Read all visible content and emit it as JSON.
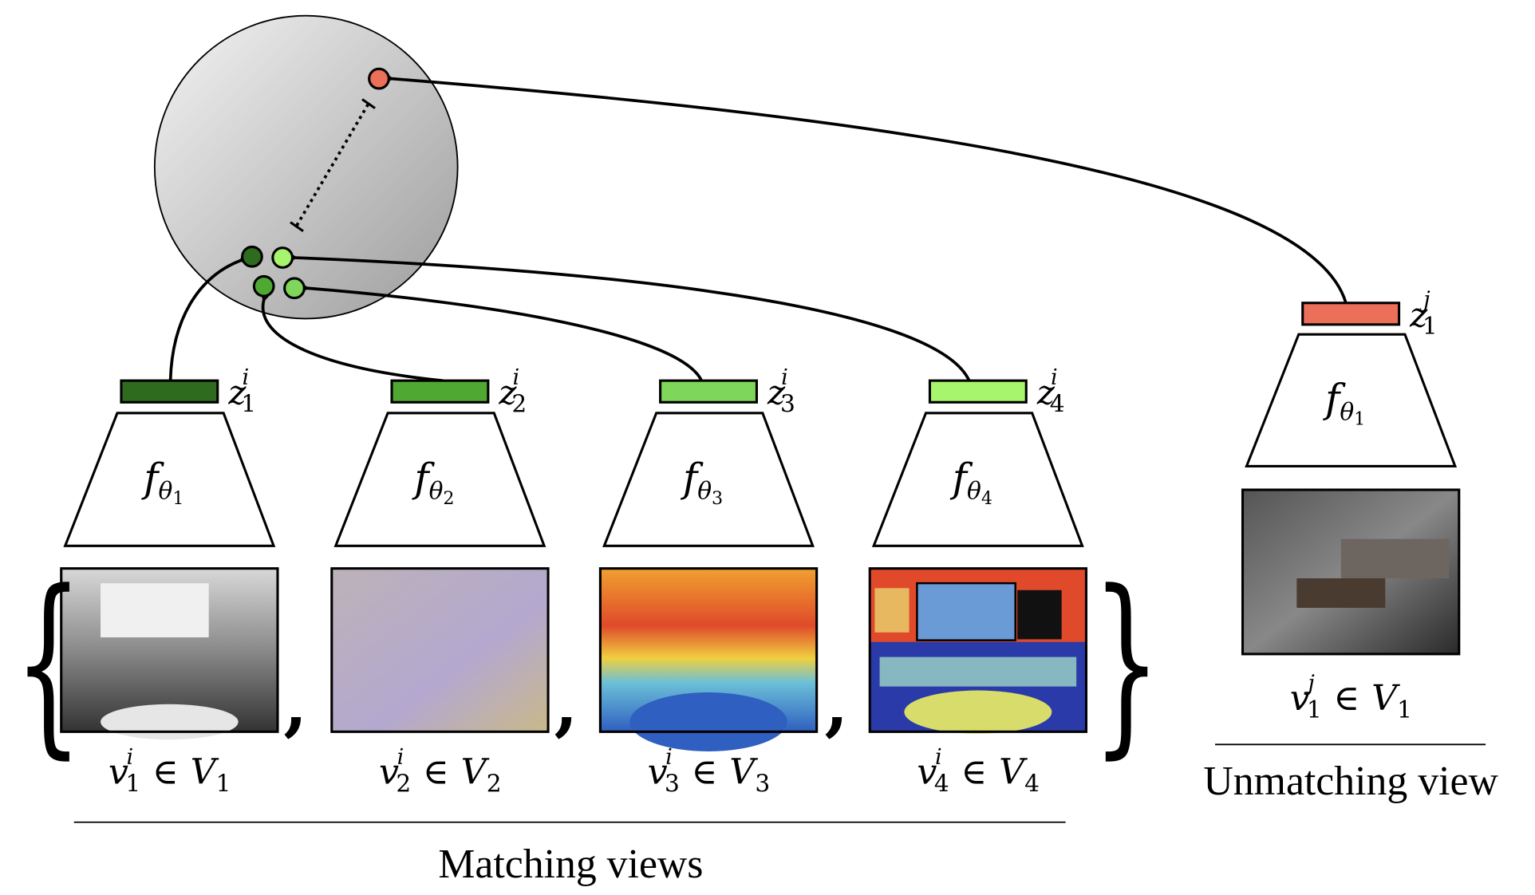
{
  "latents": [
    {
      "base": "z",
      "sup": "i",
      "sub": "1",
      "color": "#2e6b1e"
    },
    {
      "base": "z",
      "sup": "i",
      "sub": "2",
      "color": "#4ea832"
    },
    {
      "base": "z",
      "sup": "i",
      "sub": "3",
      "color": "#7ed65a"
    },
    {
      "base": "z",
      "sup": "i",
      "sub": "4",
      "color": "#a6f56c"
    },
    {
      "base": "z",
      "sup": "j",
      "sub": "1",
      "color": "#ec6f5a"
    }
  ],
  "encoders": [
    {
      "base": "f",
      "theta": "θ",
      "sub": "1"
    },
    {
      "base": "f",
      "theta": "θ",
      "sub": "2"
    },
    {
      "base": "f",
      "theta": "θ",
      "sub": "3"
    },
    {
      "base": "f",
      "theta": "θ",
      "sub": "4"
    },
    {
      "base": "f",
      "theta": "θ",
      "sub": "1"
    }
  ],
  "views": [
    {
      "base": "v",
      "sup": "i",
      "sub": "1",
      "in": "∈",
      "set": "V",
      "set_sub": "1"
    },
    {
      "base": "v",
      "sup": "i",
      "sub": "2",
      "in": "∈",
      "set": "V",
      "set_sub": "2"
    },
    {
      "base": "v",
      "sup": "i",
      "sub": "3",
      "in": "∈",
      "set": "V",
      "set_sub": "3"
    },
    {
      "base": "v",
      "sup": "i",
      "sub": "4",
      "in": "∈",
      "set": "V",
      "set_sub": "4"
    },
    {
      "base": "v",
      "sup": "j",
      "sub": "1",
      "in": "∈",
      "set": "V",
      "set_sub": "1"
    }
  ],
  "set_braces": {
    "open": "{",
    "close": "}",
    "separator": ","
  },
  "captions": {
    "matching": "Matching views",
    "unmatching": "Unmatching view"
  }
}
